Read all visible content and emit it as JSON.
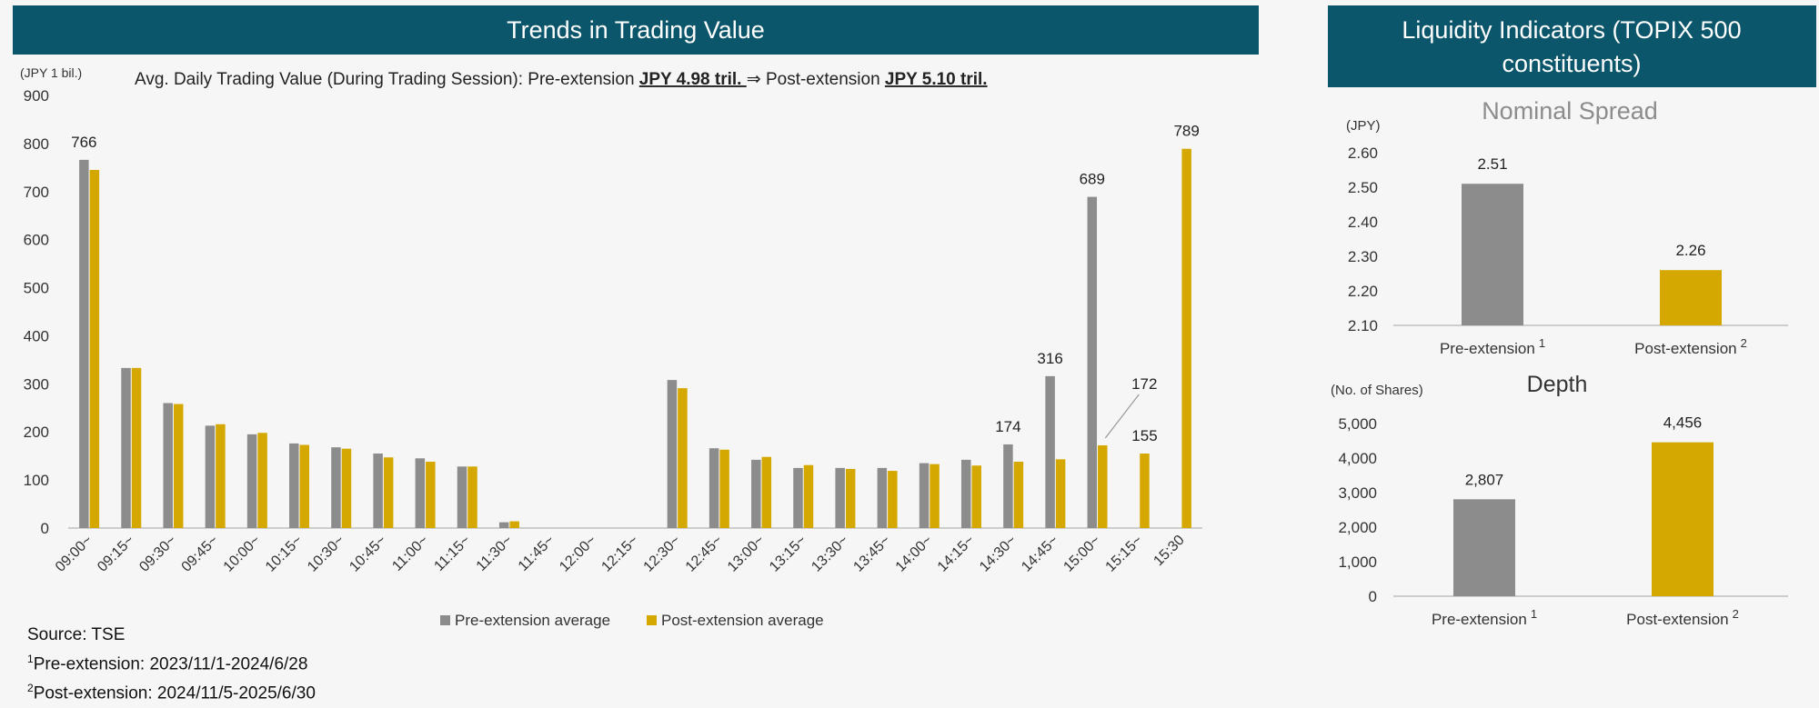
{
  "colors": {
    "header_bg": "#0b566a",
    "pre": "#8c8c8c",
    "post": "#d4a800",
    "axis": "#bfbfbf"
  },
  "left_panel": {
    "header": "Trends in Trading Value",
    "subtitle_prefix": "Avg. Daily Trading Value (During Trading Session): Pre-extension ",
    "subtitle_pre_value": "JPY 4.98 tril. ",
    "subtitle_arrow": "⇒",
    "subtitle_mid": " Post-extension ",
    "subtitle_post_value": "JPY 5.10 tril."
  },
  "right_panel": {
    "header_line1": "Liquidity Indicators (TOPIX 500",
    "header_line2": "constituents)"
  },
  "footnotes": {
    "source": "Source: TSE",
    "note1_mark": "1",
    "note1": "Pre-extension: 2023/11/1-2024/6/28",
    "note2_mark": "2",
    "note2": "Post-extension: 2024/11/5-2025/6/30"
  },
  "chart_data": [
    {
      "type": "bar",
      "title": "Trends in Trading Value",
      "ylabel": "(JPY 1 bil.)",
      "ylim": [
        0,
        900
      ],
      "yticks": [
        0,
        100,
        200,
        300,
        400,
        500,
        600,
        700,
        800,
        900
      ],
      "categories": [
        "09:00~",
        "09:15~",
        "09:30~",
        "09:45~",
        "10:00~",
        "10:15~",
        "10:30~",
        "10:45~",
        "11:00~",
        "11:15~",
        "11:30~",
        "11:45~",
        "12:00~",
        "12:15~",
        "12:30~",
        "12:45~",
        "13:00~",
        "13:15~",
        "13:30~",
        "13:45~",
        "14:00~",
        "14:15~",
        "14:30~",
        "14:45~",
        "15:00~",
        "15:15~",
        "15:30"
      ],
      "series": [
        {
          "name": "Pre-extension average",
          "values": [
            766,
            333,
            260,
            213,
            195,
            176,
            168,
            155,
            145,
            128,
            12,
            0,
            0,
            0,
            308,
            166,
            142,
            125,
            125,
            125,
            135,
            142,
            174,
            316,
            689,
            0,
            0
          ]
        },
        {
          "name": "Post-extension average",
          "values": [
            745,
            333,
            258,
            216,
            198,
            173,
            165,
            147,
            138,
            128,
            14,
            0,
            0,
            0,
            291,
            163,
            148,
            131,
            123,
            119,
            133,
            130,
            138,
            143,
            172,
            155,
            789
          ]
        }
      ],
      "data_labels": [
        {
          "category": "09:00~",
          "series": 0,
          "text": "766"
        },
        {
          "category": "14:30~",
          "series": 0,
          "text": "174"
        },
        {
          "category": "14:45~",
          "series": 0,
          "text": "316"
        },
        {
          "category": "15:00~",
          "series": 0,
          "text": "689"
        },
        {
          "category": "15:00~",
          "series": 1,
          "text": "172"
        },
        {
          "category": "15:15~",
          "series": 1,
          "text": "155"
        },
        {
          "category": "15:30",
          "series": 1,
          "text": "789"
        }
      ],
      "legend": "bottom-center"
    },
    {
      "type": "bar",
      "title": "Nominal Spread",
      "ylabel": "(JPY)",
      "ylim": [
        2.1,
        2.6
      ],
      "yticks": [
        "2.10",
        "2.20",
        "2.30",
        "2.40",
        "2.50",
        "2.60"
      ],
      "categories": [
        "Pre-extension",
        "Post-extension"
      ],
      "category_marks": [
        "1",
        "2"
      ],
      "values": [
        2.51,
        2.26
      ],
      "value_labels": [
        "2.51",
        "2.26"
      ]
    },
    {
      "type": "bar",
      "title": "Depth",
      "ylabel": "(No. of Shares)",
      "ylim": [
        0,
        5000
      ],
      "yticks": [
        "0",
        "1,000",
        "2,000",
        "3,000",
        "4,000",
        "5,000"
      ],
      "categories": [
        "Pre-extension",
        "Post-extension"
      ],
      "category_marks": [
        "1",
        "2"
      ],
      "values": [
        2807,
        4456
      ],
      "value_labels": [
        "2,807",
        "4,456"
      ]
    }
  ]
}
